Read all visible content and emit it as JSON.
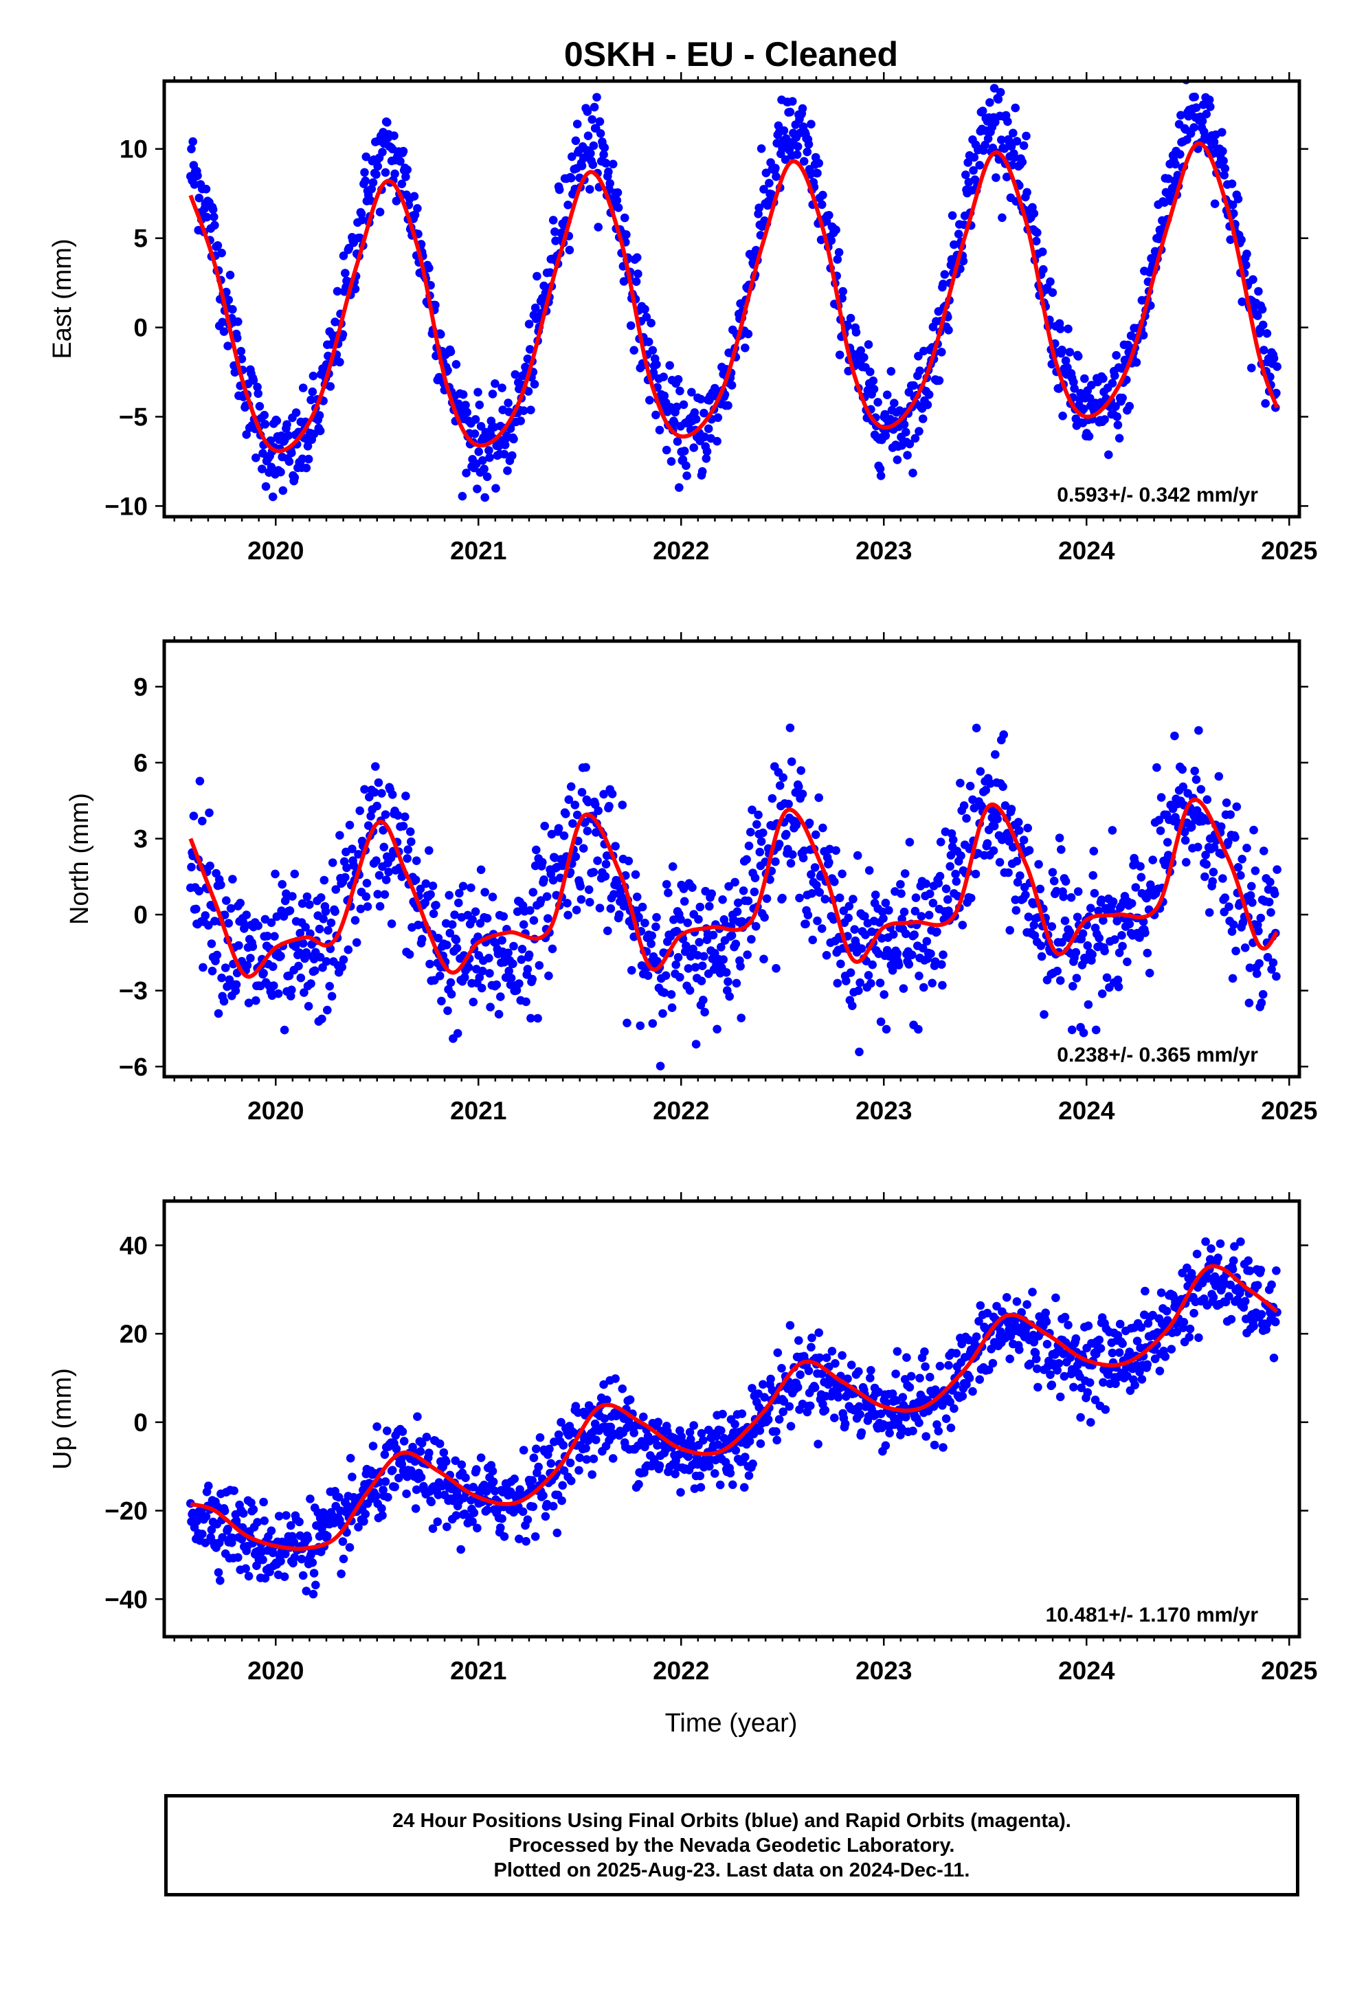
{
  "title": "0SKH  - EU - Cleaned",
  "xlabel": "Time (year)",
  "footer": {
    "line1": "24 Hour Positions Using Final Orbits (blue) and Rapid Orbits (magenta).",
    "line2": "Processed by the Nevada Geodetic Laboratory.",
    "line3": "Plotted on 2025-Aug-23. Last data on 2024-Dec-11."
  },
  "colors": {
    "points": "#0000ff",
    "model": "#ff0000",
    "frame": "#000000"
  },
  "chart_data": [
    {
      "type": "scatter",
      "ylabel": "East (mm)",
      "rate": "0.593+/- 0.342 mm/yr",
      "xlim": [
        2019.45,
        2025.05
      ],
      "ylim": [
        -10.6,
        13.8
      ],
      "yticks": [
        10,
        5,
        0,
        -5,
        -10
      ],
      "xticks": [
        2020,
        2021,
        2022,
        2023,
        2024,
        2025
      ],
      "data_range": [
        2019.58,
        2024.94
      ],
      "series": [
        {
          "kind": "points",
          "description": "daily positions",
          "model": {
            "offset": 1.3,
            "trend": 0.593,
            "ref": 2022.0,
            "annual_amp": 8.3,
            "annual_peak": 0.55,
            "semi_amp": 0.9,
            "semi_peak": 0.05,
            "noise": 1.25
          }
        },
        {
          "kind": "line",
          "description": "fitted model",
          "x": [
            2019.58,
            2019.7,
            2019.85,
            2020.0,
            2020.2,
            2020.4,
            2020.55,
            2020.7,
            2020.85,
            2021.0,
            2021.2,
            2021.4,
            2021.55,
            2021.7,
            2021.85,
            2022.0,
            2022.2,
            2022.4,
            2022.55,
            2022.7,
            2022.85,
            2023.0,
            2023.2,
            2023.4,
            2023.55,
            2023.7,
            2023.85,
            2024.0,
            2024.2,
            2024.4,
            2024.55,
            2024.7,
            2024.85,
            2024.94
          ],
          "y": [
            7.4,
            3.5,
            -3.5,
            -6.9,
            -4.5,
            3.5,
            8.2,
            4.5,
            -3.5,
            -6.6,
            -4.2,
            4.0,
            8.7,
            5.0,
            -3.0,
            -6.1,
            -3.6,
            4.6,
            9.3,
            5.5,
            -2.5,
            -5.6,
            -3.0,
            5.1,
            9.8,
            6.0,
            -2.0,
            -5.0,
            -2.3,
            5.7,
            10.3,
            6.5,
            -1.5,
            -4.5
          ]
        }
      ]
    },
    {
      "type": "scatter",
      "ylabel": "North (mm)",
      "rate": "0.238+/- 0.365 mm/yr",
      "xlim": [
        2019.45,
        2025.05
      ],
      "ylim": [
        -6.4,
        10.8
      ],
      "yticks": [
        9,
        6,
        3,
        0,
        -3,
        -6
      ],
      "xticks": [
        2020,
        2021,
        2022,
        2023,
        2024,
        2025
      ],
      "data_range": [
        2019.58,
        2024.94
      ],
      "series": [
        {
          "kind": "points",
          "description": "daily positions",
          "model": {
            "offset": 0.3,
            "trend": 0.238,
            "ref": 2022.0,
            "annual_amp": 2.4,
            "annual_peak": 0.52,
            "semi_amp": 0.8,
            "semi_peak": 0.02,
            "noise": 1.45
          }
        },
        {
          "kind": "line",
          "description": "fitted model",
          "x": [
            2019.58,
            2019.7,
            2019.85,
            2020.0,
            2020.15,
            2020.3,
            2020.5,
            2020.65,
            2020.85,
            2021.0,
            2021.15,
            2021.35,
            2021.52,
            2021.7,
            2021.85,
            2022.0,
            2022.15,
            2022.35,
            2022.52,
            2022.7,
            2022.85,
            2023.0,
            2023.15,
            2023.35,
            2023.52,
            2023.7,
            2023.85,
            2024.0,
            2024.15,
            2024.35,
            2024.52,
            2024.7,
            2024.85,
            2024.94
          ],
          "y": [
            3.0,
            0.5,
            -2.4,
            -1.3,
            -0.9,
            -0.9,
            3.6,
            1.5,
            -2.2,
            -1.1,
            -0.7,
            -0.6,
            3.9,
            1.6,
            -2.1,
            -0.8,
            -0.5,
            -0.2,
            4.1,
            1.8,
            -1.8,
            -0.5,
            -0.3,
            0.0,
            4.3,
            2.0,
            -1.5,
            -0.2,
            0.0,
            0.3,
            4.5,
            2.2,
            -1.2,
            -0.7
          ]
        }
      ]
    },
    {
      "type": "scatter",
      "ylabel": "Up (mm)",
      "rate": "10.481+/- 1.170 mm/yr",
      "xlim": [
        2019.45,
        2025.05
      ],
      "ylim": [
        -48.5,
        50
      ],
      "yticks": [
        40,
        20,
        0,
        -20,
        -40
      ],
      "xticks": [
        2020,
        2021,
        2022,
        2023,
        2024,
        2025
      ],
      "data_range": [
        2019.58,
        2024.94
      ],
      "series": [
        {
          "kind": "points",
          "description": "daily positions",
          "model": {
            "offset": -3.0,
            "trend": 10.481,
            "ref": 2022.0,
            "annual_amp": 6.2,
            "annual_peak": 0.62,
            "semi_amp": 1.2,
            "semi_peak": 0.1,
            "noise": 4.6
          }
        },
        {
          "kind": "line",
          "description": "fitted model",
          "x": [
            2019.58,
            2019.7,
            2019.85,
            2020.0,
            2020.15,
            2020.3,
            2020.45,
            2020.62,
            2020.8,
            2021.0,
            2021.2,
            2021.4,
            2021.6,
            2021.8,
            2022.0,
            2022.2,
            2022.4,
            2022.6,
            2022.8,
            2023.0,
            2023.2,
            2023.4,
            2023.6,
            2023.8,
            2024.0,
            2024.2,
            2024.4,
            2024.6,
            2024.8,
            2024.94
          ],
          "y": [
            -18.5,
            -20.0,
            -25.5,
            -28.0,
            -28.5,
            -26.0,
            -16.0,
            -7.0,
            -11.0,
            -17.0,
            -18.0,
            -10.0,
            3.5,
            0.0,
            -6.0,
            -6.5,
            2.0,
            13.5,
            9.0,
            3.5,
            3.5,
            12.0,
            24.0,
            20.0,
            14.0,
            13.5,
            21.0,
            35.0,
            30.0,
            25.0
          ]
        }
      ]
    }
  ]
}
